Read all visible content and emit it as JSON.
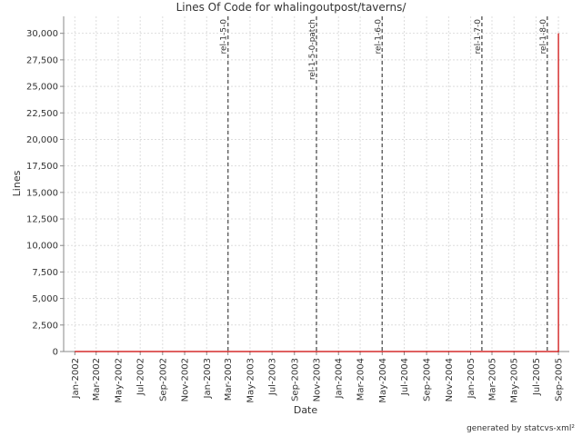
{
  "chart_data": {
    "type": "line",
    "title": "Lines Of Code for whalingoutpost/taverns/",
    "xlabel": "Date",
    "ylabel": "Lines",
    "footer": "generated by statcvs-xml²",
    "x": [
      "2002-01",
      "2005-09",
      "2005-09"
    ],
    "values": [
      0,
      0,
      30000
    ],
    "color": "#cc0000",
    "xlim": [
      "2001-12",
      "2005-10"
    ],
    "xticks": [
      {
        "value": "2002-01",
        "label": "Jan-2002"
      },
      {
        "value": "2002-03",
        "label": "Mar-2002"
      },
      {
        "value": "2002-05",
        "label": "May-2002"
      },
      {
        "value": "2002-07",
        "label": "Jul-2002"
      },
      {
        "value": "2002-09",
        "label": "Sep-2002"
      },
      {
        "value": "2002-11",
        "label": "Nov-2002"
      },
      {
        "value": "2003-01",
        "label": "Jan-2003"
      },
      {
        "value": "2003-03",
        "label": "Mar-2003"
      },
      {
        "value": "2003-05",
        "label": "May-2003"
      },
      {
        "value": "2003-07",
        "label": "Jul-2003"
      },
      {
        "value": "2003-09",
        "label": "Sep-2003"
      },
      {
        "value": "2003-11",
        "label": "Nov-2003"
      },
      {
        "value": "2004-01",
        "label": "Jan-2004"
      },
      {
        "value": "2004-03",
        "label": "Mar-2004"
      },
      {
        "value": "2004-05",
        "label": "May-2004"
      },
      {
        "value": "2004-07",
        "label": "Jul-2004"
      },
      {
        "value": "2004-09",
        "label": "Sep-2004"
      },
      {
        "value": "2004-11",
        "label": "Nov-2004"
      },
      {
        "value": "2005-01",
        "label": "Jan-2005"
      },
      {
        "value": "2005-03",
        "label": "Mar-2005"
      },
      {
        "value": "2005-05",
        "label": "May-2005"
      },
      {
        "value": "2005-07",
        "label": "Jul-2005"
      },
      {
        "value": "2005-09",
        "label": "Sep-2005"
      }
    ],
    "ylim": [
      0,
      31600
    ],
    "yticks": [
      0,
      {
        "value": 2500,
        "label": "2,500"
      },
      {
        "value": 5000,
        "label": "5,000"
      },
      {
        "value": 7500,
        "label": "7,500"
      },
      {
        "value": 10000,
        "label": "10,000"
      },
      {
        "value": 12500,
        "label": "12,500"
      },
      {
        "value": 15000,
        "label": "15,000"
      },
      {
        "value": 17500,
        "label": "17,500"
      },
      {
        "value": 20000,
        "label": "20,000"
      },
      {
        "value": 22500,
        "label": "22,500"
      },
      {
        "value": 25000,
        "label": "25,000"
      },
      {
        "value": 27500,
        "label": "27,500"
      },
      {
        "value": 30000,
        "label": "30,000"
      }
    ],
    "grid": true,
    "markers": [
      {
        "x": "2003-03",
        "label": "rel-1-5-0"
      },
      {
        "x": "2003-11",
        "label": "rel-1-5-0-patch"
      },
      {
        "x": "2004-05",
        "label": "rel-1-6-0"
      },
      {
        "x": "2005-02",
        "label": "rel-1-7-0"
      },
      {
        "x": "2005-08",
        "label": "rel-1-8-0"
      }
    ]
  }
}
